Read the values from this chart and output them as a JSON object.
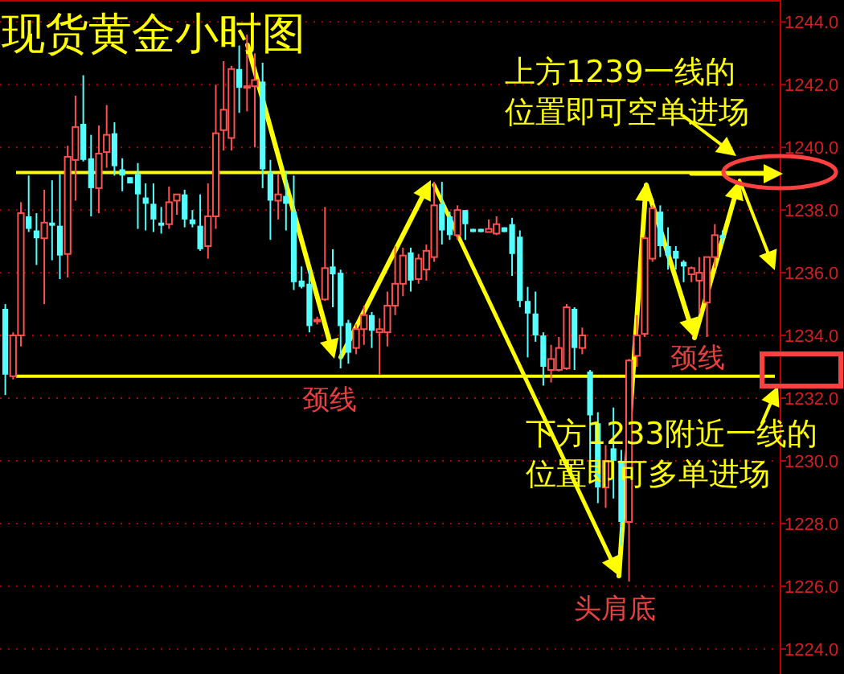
{
  "chart_data": {
    "type": "candlestick",
    "title": "现货黄金小时图",
    "categories": [
      null,
      null,
      null,
      null,
      null,
      null,
      null,
      null,
      null,
      null,
      null,
      null,
      null,
      null,
      null,
      null,
      null,
      null,
      null,
      null,
      null,
      null,
      null,
      null,
      null,
      null,
      null,
      null,
      null,
      null,
      null,
      null,
      null,
      null,
      null,
      null,
      null,
      null,
      null,
      null,
      null,
      null,
      null,
      null,
      null,
      null,
      null,
      null,
      null,
      null,
      null,
      null,
      null,
      null,
      null,
      null,
      null,
      null,
      null,
      null,
      null,
      null,
      null,
      null,
      null,
      null,
      null,
      null,
      null,
      null,
      null,
      null,
      null,
      null,
      null,
      null,
      null,
      null,
      null,
      null,
      null,
      null,
      null,
      null,
      null,
      null,
      null,
      null,
      null,
      null,
      null,
      null,
      null
    ],
    "ohlc": [
      [
        1234.85,
        1235.0,
        1232.1,
        1232.75
      ],
      [
        1232.7,
        1234.1,
        1232.6,
        1234.0
      ],
      [
        1234.0,
        1238.25,
        1233.65,
        1237.9
      ],
      [
        1237.8,
        1239.1,
        1237.3,
        1237.4
      ],
      [
        1237.35,
        1237.9,
        1236.25,
        1237.1
      ],
      [
        1237.1,
        1238.65,
        1235.0,
        1237.6
      ],
      [
        1237.6,
        1238.95,
        1236.4,
        1237.5
      ],
      [
        1237.5,
        1239.15,
        1235.8,
        1236.55
      ],
      [
        1236.6,
        1240.05,
        1235.85,
        1239.7
      ],
      [
        1239.6,
        1241.65,
        1238.3,
        1240.65
      ],
      [
        1240.75,
        1242.3,
        1239.55,
        1239.6
      ],
      [
        1239.65,
        1240.4,
        1237.8,
        1238.7
      ],
      [
        1238.7,
        1240.7,
        1237.9,
        1239.8
      ],
      [
        1239.85,
        1241.35,
        1239.35,
        1240.4
      ],
      [
        1240.45,
        1240.8,
        1239.1,
        1239.4
      ],
      [
        1239.3,
        1239.65,
        1238.6,
        1239.1
      ],
      [
        1239.05,
        1239.05,
        1238.85,
        1238.85
      ],
      [
        1239.15,
        1239.5,
        1237.4,
        1238.5
      ],
      [
        1238.4,
        1238.85,
        1237.35,
        1238.2
      ],
      [
        1238.2,
        1238.85,
        1237.3,
        1237.7
      ],
      [
        1237.6,
        1238.1,
        1237.25,
        1237.5
      ],
      [
        1237.55,
        1238.75,
        1237.4,
        1238.25
      ],
      [
        1238.3,
        1238.5,
        1237.85,
        1238.5
      ],
      [
        1238.5,
        1238.65,
        1237.45,
        1237.7
      ],
      [
        1237.7,
        1238.0,
        1237.45,
        1237.55
      ],
      [
        1237.5,
        1238.5,
        1236.7,
        1236.75
      ],
      [
        1236.85,
        1238.85,
        1236.45,
        1237.8
      ],
      [
        1237.8,
        1242.0,
        1237.4,
        1240.45
      ],
      [
        1240.55,
        1242.75,
        1239.9,
        1241.2
      ],
      [
        1240.3,
        1242.6,
        1239.9,
        1242.5
      ],
      [
        1242.5,
        1243.25,
        1241.1,
        1241.9
      ],
      [
        1241.9,
        1243.6,
        1241.15,
        1241.95
      ],
      [
        1241.95,
        1243.0,
        1240.0,
        1242.15
      ],
      [
        1242.1,
        1242.7,
        1238.7,
        1239.3
      ],
      [
        1239.2,
        1239.6,
        1237.05,
        1238.3
      ],
      [
        1238.3,
        1239.15,
        1237.7,
        1238.5
      ],
      [
        1238.45,
        1239.25,
        1237.35,
        1238.2
      ],
      [
        1237.95,
        1239.1,
        1235.45,
        1235.7
      ],
      [
        1235.75,
        1236.2,
        1235.5,
        1235.55
      ],
      [
        1235.65,
        1236.1,
        1234.1,
        1234.3
      ],
      [
        1234.45,
        1234.6,
        1234.35,
        1234.5
      ],
      [
        1235.15,
        1238.1,
        1235.1,
        1236.15
      ],
      [
        1236.2,
        1236.75,
        1234.9,
        1235.95
      ],
      [
        1236.0,
        1236.1,
        1232.95,
        1234.3
      ],
      [
        1234.4,
        1234.5,
        1233.1,
        1233.45
      ],
      [
        1233.6,
        1234.35,
        1233.4,
        1234.2
      ],
      [
        1234.2,
        1234.95,
        1233.7,
        1234.65
      ],
      [
        1234.65,
        1234.75,
        1233.6,
        1234.15
      ],
      [
        1234.1,
        1234.55,
        1232.75,
        1234.2
      ],
      [
        1234.1,
        1235.4,
        1233.65,
        1234.95
      ],
      [
        1234.95,
        1236.85,
        1234.65,
        1235.65
      ],
      [
        1235.65,
        1236.8,
        1235.25,
        1236.55
      ],
      [
        1236.65,
        1236.8,
        1235.4,
        1235.75
      ],
      [
        1235.8,
        1236.6,
        1235.65,
        1236.45
      ],
      [
        1236.1,
        1236.9,
        1235.75,
        1236.7
      ],
      [
        1236.5,
        1238.9,
        1236.35,
        1238.15
      ],
      [
        1238.2,
        1238.9,
        1236.9,
        1237.35
      ],
      [
        1237.8,
        1237.95,
        1237.05,
        1237.2
      ],
      [
        1237.2,
        1238.15,
        1237.05,
        1238.0
      ],
      [
        1238.0,
        1238.0,
        1237.05,
        1237.55
      ],
      [
        1237.4,
        1237.4,
        1237.3,
        1237.3
      ],
      [
        1237.4,
        1237.4,
        1237.3,
        1237.3
      ],
      [
        1237.3,
        1237.7,
        1237.3,
        1237.4
      ],
      [
        1237.25,
        1237.8,
        1237.2,
        1237.55
      ],
      [
        1237.45,
        1237.45,
        1237.3,
        1237.3
      ],
      [
        1237.55,
        1237.75,
        1235.9,
        1236.6
      ],
      [
        1237.15,
        1237.35,
        1234.9,
        1235.1
      ],
      [
        1235.1,
        1235.55,
        1233.3,
        1234.7
      ],
      [
        1234.7,
        1235.4,
        1233.8,
        1234.0
      ],
      [
        1234.0,
        1234.1,
        1232.4,
        1233.0
      ],
      [
        1232.9,
        1233.7,
        1232.5,
        1233.25
      ],
      [
        1232.9,
        1233.95,
        1232.85,
        1233.6
      ],
      [
        1232.95,
        1235.0,
        1232.9,
        1234.9
      ],
      [
        1234.85,
        1234.9,
        1232.9,
        1233.6
      ],
      [
        1233.6,
        1234.25,
        1233.4,
        1234.0
      ],
      [
        1232.85,
        1232.9,
        1229.85,
        1231.45
      ],
      [
        1231.2,
        1231.55,
        1228.65,
        1229.15
      ],
      [
        1229.15,
        1230.5,
        1228.5,
        1230.0
      ],
      [
        1230.4,
        1231.7,
        1228.8,
        1230.0
      ],
      [
        1230.0,
        1230.35,
        1227.3,
        1228.05
      ],
      [
        1228.05,
        1233.25,
        1226.15,
        1233.2
      ],
      [
        1233.35,
        1234.65,
        1233.0,
        1234.0
      ],
      [
        1234.05,
        1237.2,
        1233.95,
        1237.1
      ],
      [
        1236.45,
        1238.15,
        1236.35,
        1238.05
      ],
      [
        1237.95,
        1238.15,
        1236.5,
        1236.85
      ],
      [
        1236.85,
        1237.45,
        1236.1,
        1236.55
      ],
      [
        1236.7,
        1236.85,
        1236.1,
        1236.45
      ],
      [
        1236.35,
        1236.4,
        1235.7,
        1236.2
      ],
      [
        1235.95,
        1236.2,
        1235.7,
        1236.15
      ],
      [
        1235.75,
        1236.5,
        1234.7,
        1236.0
      ],
      [
        1235.05,
        1236.5,
        1233.95,
        1236.5
      ],
      [
        1236.5,
        1237.55,
        1236.15,
        1237.2
      ],
      [
        1237.2,
        1237.35,
        1236.9,
        1237.1
      ]
    ],
    "ylim": [
      1223.2,
      1244.65
    ],
    "yticks": [
      {
        "value": 1224,
        "label": "1224.0"
      },
      {
        "value": 1226,
        "label": "1226.0"
      },
      {
        "value": 1228,
        "label": "1228.0"
      },
      {
        "value": 1230,
        "label": "1230.0"
      },
      {
        "value": 1232,
        "label": "1232.0"
      },
      {
        "value": 1234,
        "label": "1234.0"
      },
      {
        "value": 1236,
        "label": "1236.0"
      },
      {
        "value": 1238,
        "label": "1238.0"
      },
      {
        "value": 1240,
        "label": "1240.0"
      },
      {
        "value": 1242,
        "label": "1242.0"
      },
      {
        "value": 1244,
        "label": "1244.0"
      }
    ],
    "grid": "y",
    "ref_lines": [
      {
        "axis": "y",
        "value": 1239.2,
        "color": "#ffff00"
      },
      {
        "axis": "y",
        "value": 1232.7,
        "color": "#ffff00"
      }
    ],
    "annotations": [
      "上方1239一线的",
      "位置即可空单进场",
      "下方1233附近一线的",
      "位置即可多单进场",
      "颈线",
      "颈线",
      "头肩底"
    ]
  }
}
